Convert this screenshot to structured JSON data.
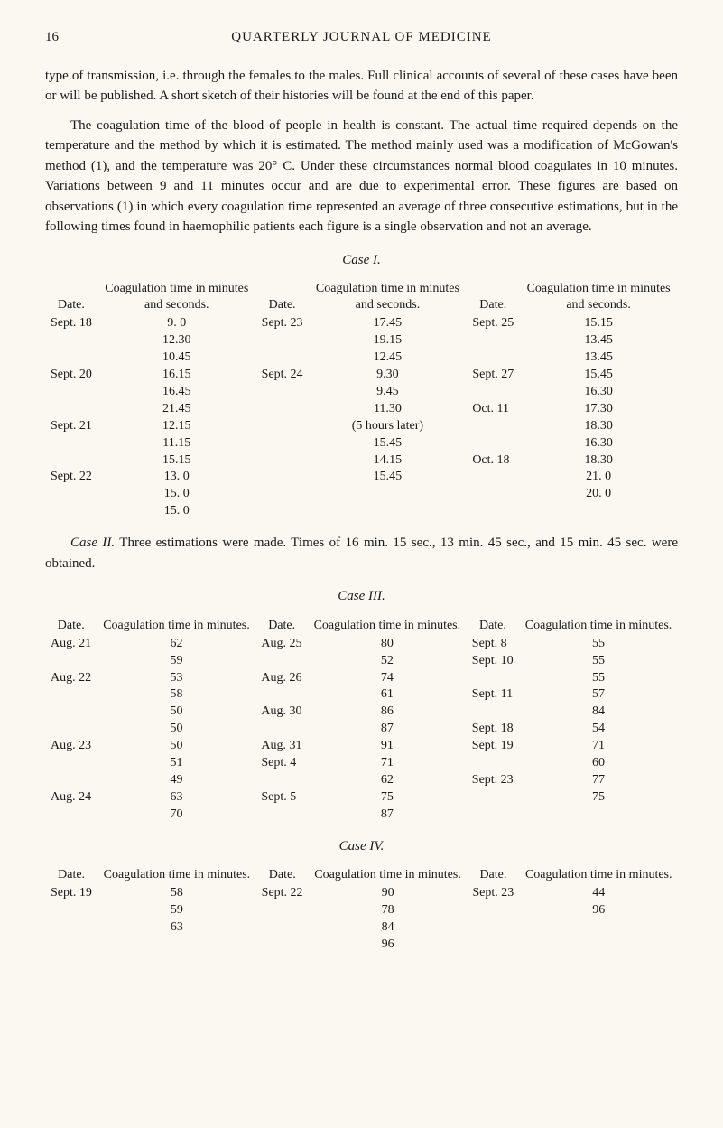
{
  "header": {
    "page_number": "16",
    "journal": "QUARTERLY JOURNAL OF MEDICINE"
  },
  "paragraphs": {
    "p1": "type of transmission, i.e. through the females to the males. Full clinical accounts of several of these cases have been or will be published. A short sketch of their histories will be found at the end of this paper.",
    "p2": "The coagulation time of the blood of people in health is constant. The actual time required depends on the temperature and the method by which it is estimated. The method mainly used was a modification of McGowan's method (1), and the temperature was 20° C. Under these circumstances normal blood coagulates in 10 minutes. Variations between 9 and 11 minutes occur and are due to experimental error. These figures are based on observations (1) in which every coagulation time represented an average of three consecutive estimations, but in the following times found in haemophilic patients each figure is a single observation and not an average."
  },
  "case1": {
    "title": "Case I.",
    "headers": {
      "date": "Date.",
      "coag": "Coagulation time in minutes and seconds."
    },
    "rows": [
      [
        "Sept. 18",
        "9. 0",
        "Sept. 23",
        "17.45",
        "Sept. 25",
        "15.15"
      ],
      [
        "",
        "12.30",
        "",
        "19.15",
        "",
        "13.45"
      ],
      [
        "",
        "10.45",
        "",
        "12.45",
        "",
        "13.45"
      ],
      [
        "Sept. 20",
        "16.15",
        "Sept. 24",
        "9.30",
        "Sept. 27",
        "15.45"
      ],
      [
        "",
        "16.45",
        "",
        "9.45",
        "",
        "16.30"
      ],
      [
        "",
        "21.45",
        "",
        "11.30",
        "Oct. 11",
        "17.30"
      ],
      [
        "Sept. 21",
        "12.15",
        "",
        "(5 hours later)",
        "",
        "18.30"
      ],
      [
        "",
        "11.15",
        "",
        "15.45",
        "",
        "16.30"
      ],
      [
        "",
        "15.15",
        "",
        "14.15",
        "Oct. 18",
        "18.30"
      ],
      [
        "Sept. 22",
        "13. 0",
        "",
        "15.45",
        "",
        "21. 0"
      ],
      [
        "",
        "15. 0",
        "",
        "",
        "",
        "20. 0"
      ],
      [
        "",
        "15. 0",
        "",
        "",
        "",
        ""
      ]
    ]
  },
  "case2": {
    "note_label": "Case II.",
    "note_text": "Three estimations were made. Times of 16 min. 15 sec., 13 min. 45 sec., and 15 min. 45 sec. were obtained."
  },
  "case3": {
    "title": "Case III.",
    "headers": {
      "date": "Date.",
      "coag": "Coagulation time in minutes."
    },
    "rows": [
      [
        "Aug. 21",
        "62",
        "Aug. 25",
        "80",
        "Sept. 8",
        "55"
      ],
      [
        "",
        "59",
        "",
        "52",
        "Sept. 10",
        "55"
      ],
      [
        "Aug. 22",
        "53",
        "Aug. 26",
        "74",
        "",
        "55"
      ],
      [
        "",
        "58",
        "",
        "61",
        "Sept. 11",
        "57"
      ],
      [
        "",
        "50",
        "Aug. 30",
        "86",
        "",
        "84"
      ],
      [
        "",
        "50",
        "",
        "87",
        "Sept. 18",
        "54"
      ],
      [
        "Aug. 23",
        "50",
        "Aug. 31",
        "91",
        "Sept. 19",
        "71"
      ],
      [
        "",
        "51",
        "Sept. 4",
        "71",
        "",
        "60"
      ],
      [
        "",
        "49",
        "",
        "62",
        "Sept. 23",
        "77"
      ],
      [
        "Aug. 24",
        "63",
        "Sept. 5",
        "75",
        "",
        "75"
      ],
      [
        "",
        "70",
        "",
        "87",
        "",
        ""
      ]
    ]
  },
  "case4": {
    "title": "Case IV.",
    "headers": {
      "date": "Date.",
      "coag": "Coagulation time in minutes."
    },
    "rows": [
      [
        "Sept. 19",
        "58",
        "Sept. 22",
        "90",
        "Sept. 23",
        "44"
      ],
      [
        "",
        "59",
        "",
        "78",
        "",
        "96"
      ],
      [
        "",
        "63",
        "",
        "84",
        "",
        ""
      ],
      [
        "",
        "",
        "",
        "96",
        "",
        ""
      ]
    ]
  }
}
